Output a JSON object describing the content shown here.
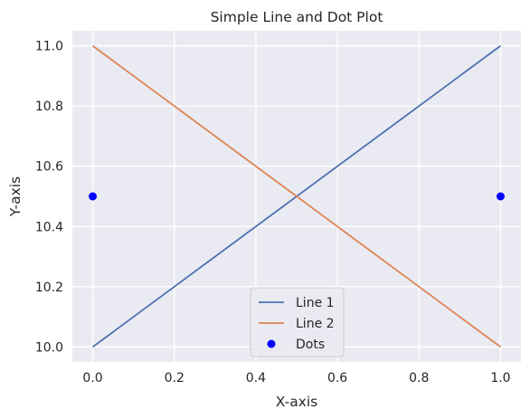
{
  "chart_data": {
    "type": "line",
    "title": "Simple Line and Dot Plot",
    "xlabel": "X-axis",
    "ylabel": "Y-axis",
    "xlim": [
      -0.05,
      1.05
    ],
    "ylim": [
      9.95,
      11.05
    ],
    "x_ticks": [
      0.0,
      0.2,
      0.4,
      0.6,
      0.8,
      1.0
    ],
    "x_tick_labels": [
      "0.0",
      "0.2",
      "0.4",
      "0.6",
      "0.8",
      "1.0"
    ],
    "y_ticks": [
      10.0,
      10.2,
      10.4,
      10.6,
      10.8,
      11.0
    ],
    "y_tick_labels": [
      "10.0",
      "10.2",
      "10.4",
      "10.6",
      "10.8",
      "11.0"
    ],
    "grid": true,
    "legend_position": "lower-center",
    "series": [
      {
        "name": "Line 1",
        "kind": "line",
        "color": "#4c72b0",
        "x": [
          0,
          1
        ],
        "y": [
          10,
          11
        ]
      },
      {
        "name": "Line 2",
        "kind": "line",
        "color": "#dd8452",
        "x": [
          0,
          1
        ],
        "y": [
          11,
          10
        ]
      },
      {
        "name": "Dots",
        "kind": "scatter",
        "color": "#0000ff",
        "x": [
          0,
          1
        ],
        "y": [
          10.5,
          10.5
        ]
      }
    ]
  }
}
